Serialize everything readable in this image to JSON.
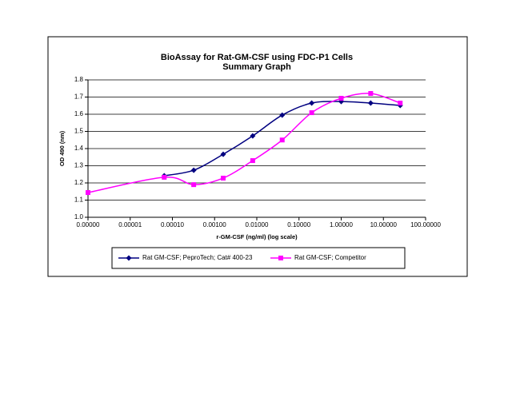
{
  "chart_data": {
    "type": "line",
    "title": "BioAssay for Rat-GM-CSF using FDC-P1 Cells",
    "subtitle": "Summary Graph",
    "x_label": "r-GM-CSF (ng/ml) (log scale)",
    "y_label": "OD 490 (nm)",
    "x_log": true,
    "smooth": true,
    "grid": true,
    "legend": "bottom",
    "xlim": [
      1e-06,
      100
    ],
    "xticks": [
      {
        "value": 1e-06,
        "label": "0.00000"
      },
      {
        "value": 1e-05,
        "label": "0.00001"
      },
      {
        "value": 0.0001,
        "label": "0.00010"
      },
      {
        "value": 0.001,
        "label": "0.00100"
      },
      {
        "value": 0.01,
        "label": "0.01000"
      },
      {
        "value": 0.1,
        "label": "0.10000"
      },
      {
        "value": 1,
        "label": "1.00000"
      },
      {
        "value": 10,
        "label": "10.00000"
      },
      {
        "value": 100,
        "label": "100.00000"
      }
    ],
    "ylim": [
      1.0,
      1.8
    ],
    "yticks": [
      {
        "value": 1,
        "label": "1.0"
      },
      1.1,
      1.2,
      1.3,
      1.4,
      1.5,
      1.6,
      1.7,
      1.8
    ],
    "series": [
      {
        "name": "Rat GM-CSF; PeproTech; Cat# 400-23",
        "color": "#000080",
        "marker": "diamond",
        "x": [
          6.4e-05,
          0.00032,
          0.0016,
          0.008,
          0.04,
          0.2,
          1,
          5,
          25
        ],
        "values": [
          1.242,
          1.274,
          1.367,
          1.474,
          1.595,
          1.665,
          1.674,
          1.665,
          1.651
        ]
      },
      {
        "name": "Rat GM-CSF; Competitor",
        "color": "#ff00ff",
        "marker": "square",
        "x": [
          1e-06,
          6.4e-05,
          0.00032,
          0.0016,
          0.008,
          0.04,
          0.2,
          1,
          5,
          25
        ],
        "values": [
          1.144,
          1.233,
          1.19,
          1.228,
          1.33,
          1.45,
          1.609,
          1.693,
          1.721,
          1.665
        ]
      }
    ]
  }
}
